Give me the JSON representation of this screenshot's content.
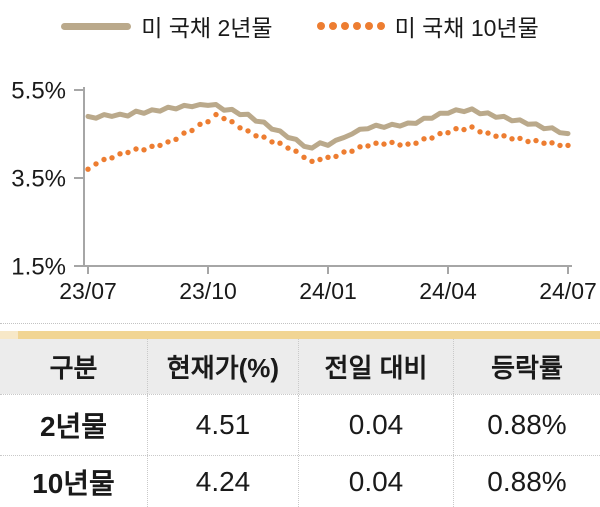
{
  "legend": {
    "items": [
      {
        "label": "미 국채 2년물",
        "color": "#baa98b",
        "marker": "solid-line"
      },
      {
        "label": "미 국채 10년물",
        "color": "#ed7d31",
        "marker": "dotted"
      }
    ]
  },
  "chart_data": {
    "type": "line",
    "title": "",
    "xlabel": "",
    "ylabel": "",
    "x_ticks": [
      "23/07",
      "23/10",
      "24/01",
      "24/04",
      "24/07"
    ],
    "y_ticks": [
      "5.5%",
      "3.5%",
      "1.5%"
    ],
    "y_tick_values": [
      5.5,
      3.5,
      1.5
    ],
    "ylim": [
      1.5,
      5.5
    ],
    "grid": false,
    "legend_position": "top",
    "axis_color": "#a6a6a6",
    "series": [
      {
        "name": "미 국채 2년물",
        "type": "line",
        "color": "#baa98b",
        "values": [
          4.9,
          4.86,
          4.94,
          4.9,
          4.95,
          4.91,
          5.02,
          4.97,
          5.05,
          5.02,
          5.11,
          5.07,
          5.15,
          5.12,
          5.17,
          5.15,
          5.17,
          5.04,
          5.06,
          4.94,
          4.95,
          4.79,
          4.77,
          4.61,
          4.57,
          4.42,
          4.38,
          4.22,
          4.18,
          4.3,
          4.24,
          4.36,
          4.42,
          4.5,
          4.61,
          4.62,
          4.7,
          4.65,
          4.72,
          4.68,
          4.75,
          4.74,
          4.86,
          4.86,
          4.97,
          4.97,
          5.05,
          5.01,
          5.07,
          4.96,
          4.98,
          4.88,
          4.9,
          4.8,
          4.82,
          4.72,
          4.73,
          4.62,
          4.64,
          4.53,
          4.51
        ]
      },
      {
        "name": "미 국채 10년물",
        "type": "dots",
        "color": "#ed7d31",
        "values": [
          3.7,
          3.82,
          3.92,
          3.96,
          4.05,
          4.08,
          4.16,
          4.14,
          4.22,
          4.24,
          4.32,
          4.38,
          4.52,
          4.58,
          4.72,
          4.78,
          4.94,
          4.85,
          4.78,
          4.64,
          4.57,
          4.46,
          4.43,
          4.32,
          4.29,
          4.18,
          4.11,
          3.97,
          3.88,
          3.92,
          3.97,
          3.99,
          4.09,
          4.11,
          4.21,
          4.23,
          4.29,
          4.27,
          4.31,
          4.25,
          4.27,
          4.29,
          4.39,
          4.41,
          4.51,
          4.53,
          4.62,
          4.6,
          4.66,
          4.55,
          4.52,
          4.45,
          4.46,
          4.39,
          4.4,
          4.33,
          4.35,
          4.29,
          4.3,
          4.24,
          4.24
        ]
      }
    ]
  },
  "table": {
    "accent_color": "#f1d594",
    "accent_color_light": "#f7e8c8",
    "headers": [
      "구분",
      "현재가(%)",
      "전일 대비",
      "등락률"
    ],
    "rows": [
      [
        "2년물",
        "4.51",
        "0.04",
        "0.88%"
      ],
      [
        "10년물",
        "4.24",
        "0.04",
        "0.88%"
      ]
    ]
  }
}
